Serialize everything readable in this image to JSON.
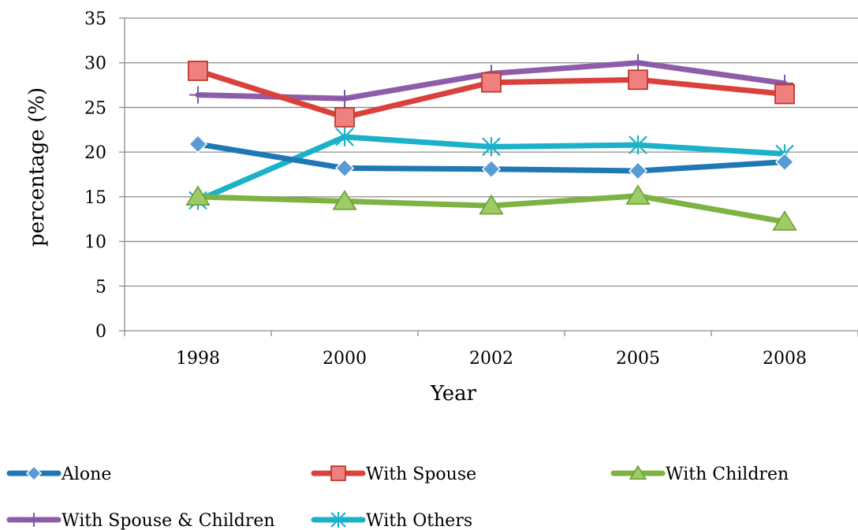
{
  "chart_data": {
    "type": "line",
    "title": "",
    "xlabel": "Year",
    "ylabel": "percentage (%)",
    "categories": [
      "1998",
      "2000",
      "2002",
      "2005",
      "2008"
    ],
    "ylim": [
      0,
      35
    ],
    "yticks": [
      "0",
      "5",
      "10",
      "15",
      "20",
      "25",
      "30",
      "35"
    ],
    "grid": true,
    "legend_position": "bottom",
    "series": [
      {
        "name": "Alone",
        "values": [
          20.9,
          18.2,
          18.1,
          17.9,
          18.9
        ],
        "color": "#1f78b4",
        "marker": "diamond",
        "marker_color": "#5b9bd5"
      },
      {
        "name": "With Spouse",
        "values": [
          29.1,
          23.9,
          27.8,
          28.1,
          26.5
        ],
        "color": "#d9413a",
        "marker": "square",
        "marker_color": "#f08080"
      },
      {
        "name": "With Children",
        "values": [
          15.0,
          14.5,
          14.0,
          15.1,
          12.2
        ],
        "color": "#7cb342",
        "marker": "triangle",
        "marker_color": "#9ccc65"
      },
      {
        "name": "With Spouse & Children",
        "values": [
          26.4,
          26.0,
          28.8,
          30.0,
          27.7
        ],
        "color": "#8e5ca8",
        "marker": "plus",
        "marker_color": "#7e57a2"
      },
      {
        "name": "With Others",
        "values": [
          14.6,
          21.7,
          20.6,
          20.8,
          19.8
        ],
        "color": "#1bb1c9",
        "marker": "star",
        "marker_color": "#1bb1c9"
      }
    ]
  }
}
